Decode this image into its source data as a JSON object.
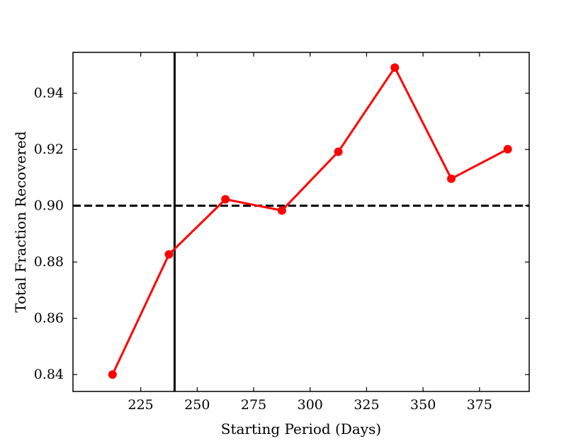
{
  "chart_data": {
    "type": "line",
    "title": "",
    "xlabel": "Starting Period (Days)",
    "ylabel": "Total Fraction Recovered",
    "xlim": [
      195,
      397
    ],
    "ylim": [
      0.834,
      0.9545
    ],
    "xticks": [
      225,
      250,
      275,
      300,
      325,
      350,
      375
    ],
    "xtick_labels": [
      "225",
      "250",
      "275",
      "300",
      "325",
      "350",
      "375"
    ],
    "yticks": [
      0.84,
      0.86,
      0.88,
      0.9,
      0.92,
      0.94
    ],
    "ytick_labels": [
      "0.84",
      "0.86",
      "0.88",
      "0.90",
      "0.92",
      "0.94"
    ],
    "grid": false,
    "series": [
      {
        "color": "#ff0000",
        "marker": "circle",
        "x": [
          212.5,
          237.5,
          262.5,
          287.5,
          312.5,
          337.5,
          362.5,
          387.5
        ],
        "y": [
          0.84,
          0.8827,
          0.9023,
          0.8983,
          0.9192,
          0.9491,
          0.9096,
          0.9201
        ]
      }
    ],
    "reference_lines": [
      {
        "orientation": "horizontal",
        "value": 0.9,
        "style": "dashed",
        "color": "#000000"
      },
      {
        "orientation": "vertical",
        "value": 240,
        "style": "solid",
        "color": "#000000"
      }
    ]
  }
}
